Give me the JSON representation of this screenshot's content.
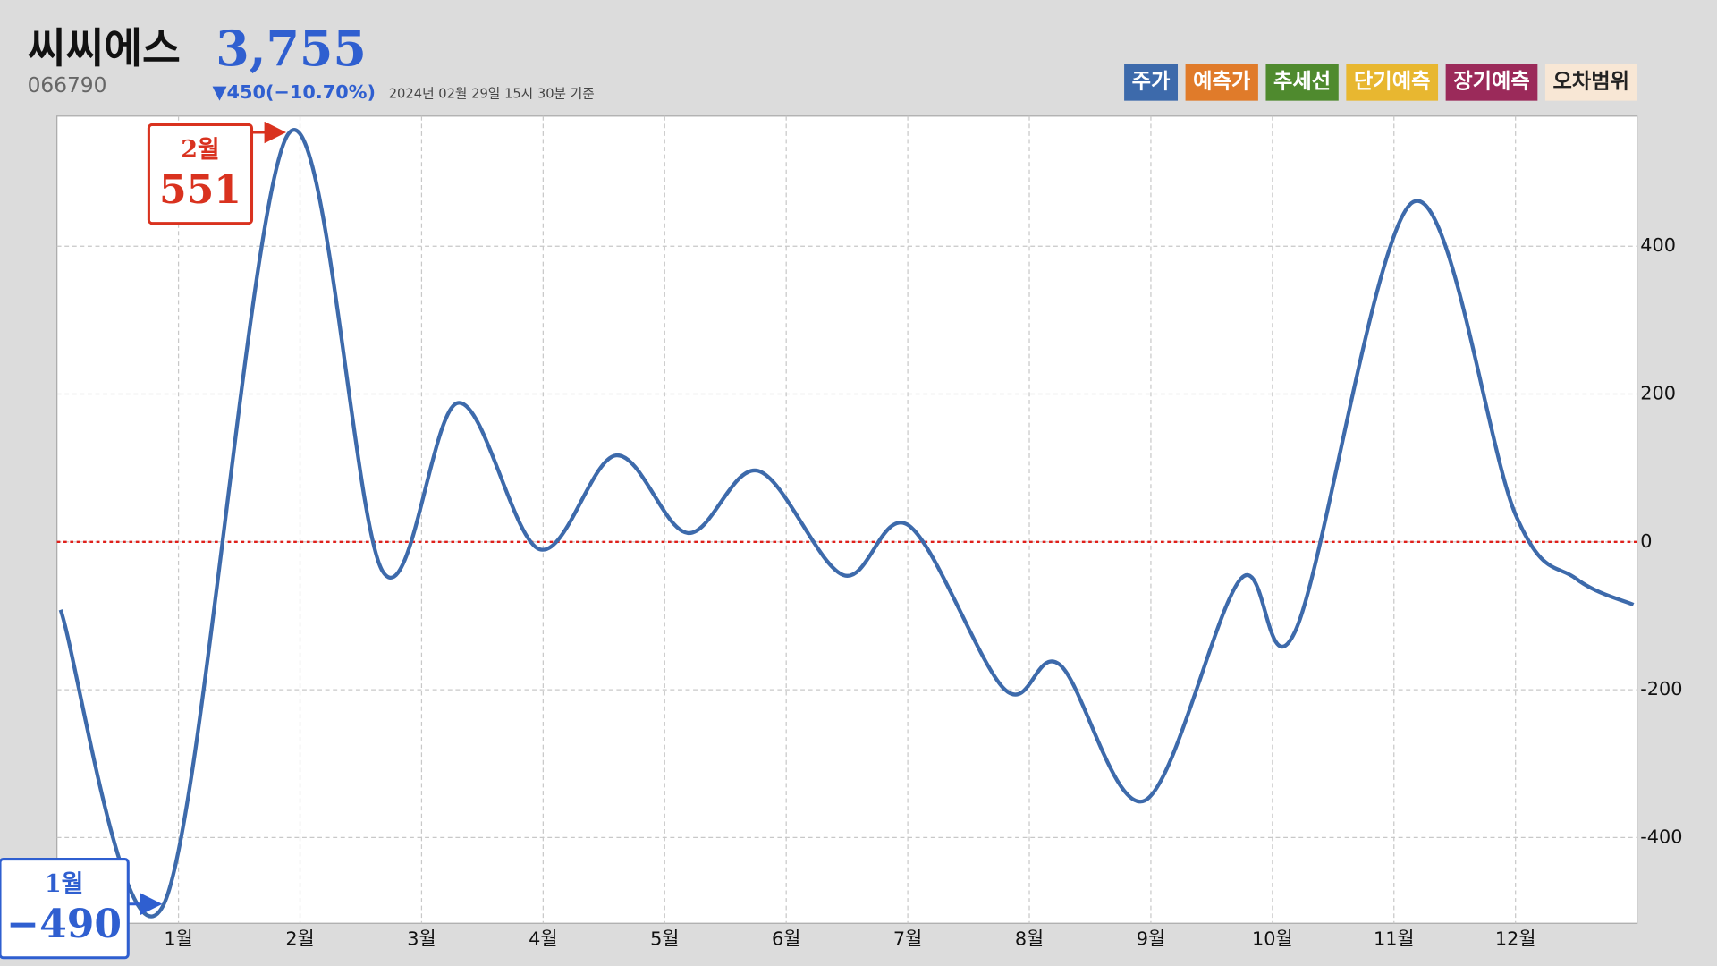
{
  "header": {
    "title": "씨씨에스",
    "price": "3,755",
    "code": "066790",
    "change": "▼450(−10.70%)",
    "timestamp": "2024년 02월 29일 15시 30분 기준"
  },
  "legend_buttons": [
    {
      "label": "주가",
      "color": "#3d6aab"
    },
    {
      "label": "예측가",
      "color": "#e07b2a"
    },
    {
      "label": "추세선",
      "color": "#4f8a2e"
    },
    {
      "label": "단기예측",
      "color": "#e8b730"
    },
    {
      "label": "장기예측",
      "color": "#9b2a5a"
    },
    {
      "label": "오차범위",
      "color": "#f8e7d5"
    }
  ],
  "chart_data": {
    "type": "line",
    "x": [
      0.03,
      0.88,
      1.9,
      2.68,
      3.3,
      3.97,
      4.6,
      5.19,
      5.77,
      6.47,
      7.01,
      7.8,
      8.25,
      8.95,
      9.74,
      10.19,
      11.16,
      12.0,
      12.5,
      12.97
    ],
    "series": [
      {
        "name": "주가",
        "color": "#3d6aab",
        "values": [
          -92,
          -490,
          551,
          -40,
          188,
          -10,
          117,
          12,
          96,
          -45,
          22,
          -200,
          -166,
          -350,
          -50,
          -120,
          460,
          37,
          -50,
          -85
        ]
      }
    ],
    "xlim": [
      0,
      13
    ],
    "xticks": [
      {
        "value": 1,
        "label": "1월"
      },
      {
        "value": 2,
        "label": "2월"
      },
      {
        "value": 3,
        "label": "3월"
      },
      {
        "value": 4,
        "label": "4월"
      },
      {
        "value": 5,
        "label": "5월"
      },
      {
        "value": 6,
        "label": "6월"
      },
      {
        "value": 7,
        "label": "7월"
      },
      {
        "value": 8,
        "label": "8월"
      },
      {
        "value": 9,
        "label": "9월"
      },
      {
        "value": 10,
        "label": "10월"
      },
      {
        "value": 11,
        "label": "11월"
      },
      {
        "value": 12,
        "label": "12월"
      }
    ],
    "ylim": [
      -516,
      576
    ],
    "yticks": [
      -400,
      -200,
      0,
      200,
      400
    ],
    "grid": true,
    "reference_line": {
      "value": 0,
      "color": "#e0201b"
    },
    "annotations": [
      {
        "month_label": "2월",
        "value": 551,
        "color": "#d9321f"
      },
      {
        "month_label": "1월",
        "value": -490,
        "value_label": "−490",
        "color": "#2f5fd0"
      }
    ]
  }
}
